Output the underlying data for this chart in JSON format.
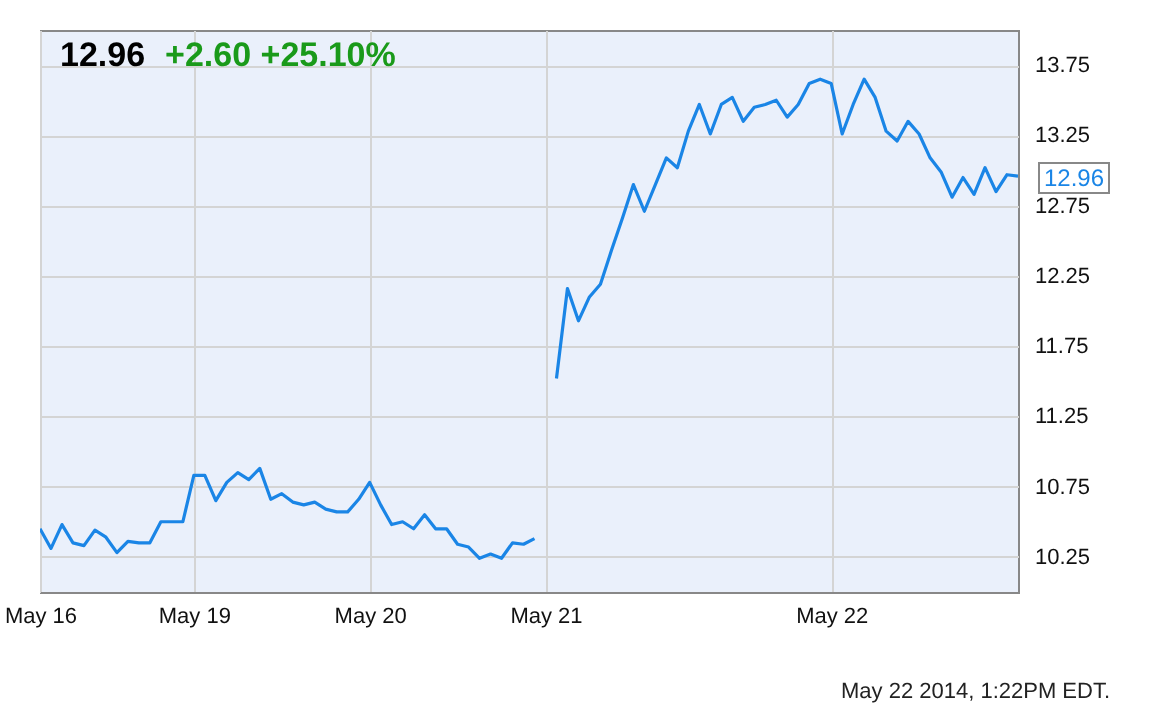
{
  "chart_data": {
    "type": "line",
    "title": "12.96",
    "subtitle": "+2.60 +25.10%",
    "categories": [
      "May 16",
      null,
      null,
      null,
      null,
      null,
      null,
      null,
      null,
      null,
      null,
      null,
      null,
      null,
      "May 19",
      null,
      null,
      null,
      null,
      null,
      null,
      null,
      null,
      null,
      null,
      null,
      null,
      null,
      null,
      null,
      "May 20",
      null,
      null,
      null,
      null,
      null,
      null,
      null,
      null,
      null,
      null,
      null,
      null,
      null,
      null,
      null,
      "May 21",
      null,
      null,
      null,
      null,
      null,
      null,
      null,
      null,
      null,
      null,
      null,
      null,
      null,
      null,
      null,
      null,
      null,
      null,
      null,
      null,
      null,
      null,
      null,
      null,
      null,
      "May 22",
      null,
      null,
      null,
      null,
      null,
      null,
      null,
      null,
      null,
      null,
      null,
      null,
      null,
      null,
      null,
      null,
      null
    ],
    "series": [
      {
        "color": "#1a85e6",
        "values": [
          10.45,
          10.31,
          10.48,
          10.35,
          10.33,
          10.44,
          10.39,
          10.28,
          10.36,
          10.35,
          10.35,
          10.5,
          10.5,
          10.5,
          10.83,
          10.83,
          10.65,
          10.78,
          10.85,
          10.8,
          10.88,
          10.66,
          10.7,
          10.64,
          10.62,
          10.64,
          10.59,
          10.57,
          10.57,
          10.66,
          10.78,
          10.62,
          10.48,
          10.5,
          10.45,
          10.55,
          10.45,
          10.45,
          10.34,
          10.32,
          10.24,
          10.27,
          10.24,
          10.35,
          10.34,
          10.38,
          null,
          11.52,
          12.16,
          11.93,
          12.1,
          12.19,
          12.43,
          12.66,
          12.9,
          12.71,
          12.9,
          13.09,
          13.02,
          13.28,
          13.47,
          13.26,
          13.47,
          13.52,
          13.35,
          13.45,
          13.47,
          13.5,
          13.38,
          13.47,
          13.62,
          13.65,
          13.62,
          13.26,
          13.47,
          13.65,
          13.52,
          13.28,
          13.21,
          13.35,
          13.26,
          13.09,
          12.99,
          12.81,
          12.95,
          12.83,
          13.02,
          12.85,
          12.97,
          12.96
        ]
      }
    ],
    "ylim": [
      10,
      14
    ],
    "yticks": [
      {
        "value": 10.25,
        "label": "10.25"
      },
      {
        "value": 10.75,
        "label": "10.75"
      },
      {
        "value": 11.25,
        "label": "11.25"
      },
      {
        "value": 11.75,
        "label": "11.75"
      },
      {
        "value": 12.25,
        "label": "12.25"
      },
      {
        "value": 12.75,
        "label": "12.75"
      },
      {
        "value": 13.25,
        "label": "13.25"
      },
      {
        "value": 13.75,
        "label": "13.75"
      }
    ],
    "grid": true,
    "annotations": [
      "12.96",
      "May 22 2014, 1:22PM EDT."
    ]
  }
}
